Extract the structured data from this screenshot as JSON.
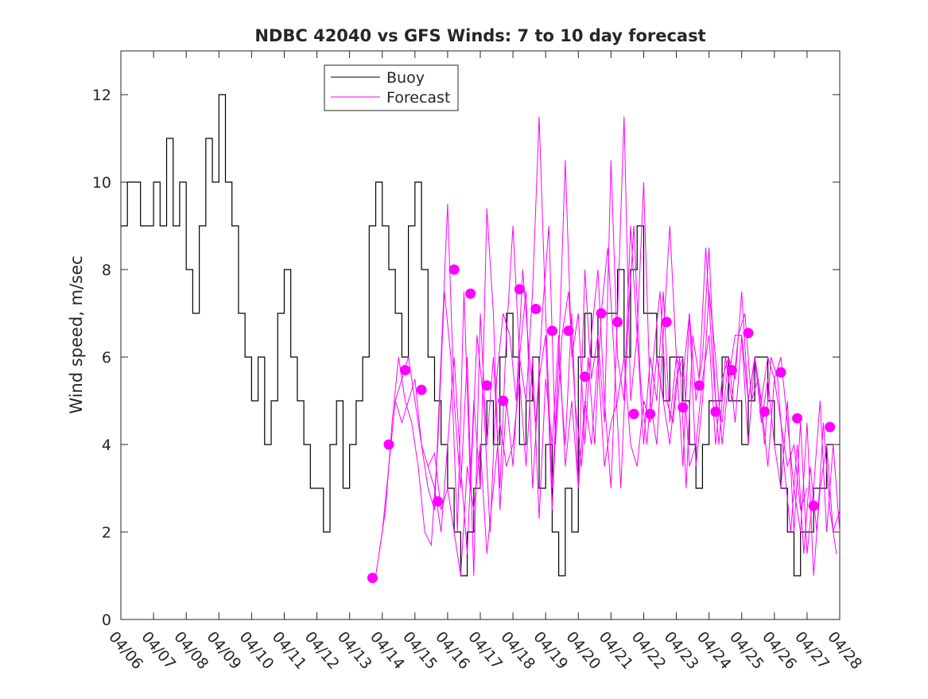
{
  "chart_data": {
    "type": "line",
    "title": "NDBC 42040 vs GFS Winds: 7 to 10 day forecast",
    "xlabel": "",
    "ylabel": "Wind speed, m/sec",
    "xlim": [
      0,
      22
    ],
    "ylim": [
      0,
      13
    ],
    "grid": false,
    "legend_position": "top-center",
    "colors": {
      "buoy": "#000000",
      "forecast": "#ff00ff",
      "axis": "#262626"
    },
    "x_tick_labels": [
      "04/06",
      "04/07",
      "04/08",
      "04/09",
      "04/10",
      "04/11",
      "04/12",
      "04/13",
      "04/14",
      "04/15",
      "04/16",
      "04/17",
      "04/18",
      "04/19",
      "04/20",
      "04/21",
      "04/22",
      "04/23",
      "04/24",
      "04/25",
      "04/26",
      "04/27",
      "04/28"
    ],
    "y_ticks": [
      0,
      2,
      4,
      6,
      8,
      10,
      12
    ],
    "series": [
      {
        "name": "Buoy",
        "x": [
          0.0,
          0.2,
          0.4,
          0.6,
          0.8,
          1.0,
          1.2,
          1.4,
          1.6,
          1.8,
          2.0,
          2.2,
          2.4,
          2.6,
          2.8,
          3.0,
          3.2,
          3.4,
          3.6,
          3.8,
          4.0,
          4.2,
          4.4,
          4.6,
          4.8,
          5.0,
          5.2,
          5.4,
          5.6,
          5.8,
          6.0,
          6.2,
          6.4,
          6.6,
          6.8,
          7.0,
          7.2,
          7.4,
          7.6,
          7.8,
          8.0,
          8.2,
          8.4,
          8.6,
          8.8,
          9.0,
          9.2,
          9.4,
          9.6,
          9.8,
          10.0,
          10.2,
          10.4,
          10.6,
          10.8,
          11.0,
          11.2,
          11.4,
          11.6,
          11.8,
          12.0,
          12.2,
          12.4,
          12.6,
          12.8,
          13.0,
          13.2,
          13.4,
          13.6,
          13.8,
          14.0,
          14.2,
          14.4,
          14.6,
          14.8,
          15.0,
          15.2,
          15.4,
          15.6,
          15.8,
          16.0,
          16.2,
          16.4,
          16.6,
          16.8,
          17.0,
          17.2,
          17.4,
          17.6,
          17.8,
          18.0,
          18.2,
          18.4,
          18.6,
          18.8,
          19.0,
          19.2,
          19.4,
          19.6,
          19.8,
          20.0,
          20.2,
          20.4,
          20.6,
          20.8,
          21.0,
          21.2,
          21.4,
          21.6,
          21.8
        ],
        "values": [
          9,
          10,
          10,
          9,
          9,
          10,
          9,
          11,
          9,
          10,
          8,
          7,
          9,
          11,
          10,
          12,
          10,
          9,
          7,
          6,
          5,
          6,
          4,
          5,
          7,
          8,
          6,
          5,
          4,
          3,
          3,
          2,
          4,
          5,
          3,
          4,
          5,
          6,
          9,
          10,
          9,
          8,
          7,
          6,
          9,
          10,
          8,
          6,
          5,
          4,
          3,
          2,
          1,
          2,
          3,
          4,
          5,
          4,
          6,
          7,
          6,
          4,
          5,
          6,
          3,
          4,
          2,
          1,
          3,
          2,
          6,
          7,
          6,
          7,
          7,
          7,
          8,
          6,
          8,
          9,
          7,
          7,
          6,
          5,
          6,
          6,
          5,
          4,
          3,
          4,
          5,
          5,
          6,
          5,
          5,
          4,
          5,
          6,
          6,
          5,
          4,
          3,
          2,
          1,
          2,
          2,
          3,
          3,
          4,
          4
        ]
      },
      {
        "name": "Forecast",
        "x": [
          7.8,
          8.0,
          8.2,
          8.4,
          8.6,
          8.8,
          9.0,
          9.2,
          9.4,
          9.6,
          9.8,
          10.0,
          10.2,
          10.4,
          10.6,
          10.8,
          11.0,
          11.2,
          11.4,
          11.6,
          11.8,
          12.0,
          12.2,
          12.4,
          12.6,
          12.8,
          13.0,
          13.2,
          13.4,
          13.6,
          13.8,
          14.0,
          14.2,
          14.4,
          14.6,
          14.8,
          15.0,
          15.2,
          15.4,
          15.6,
          15.8,
          16.0,
          16.2,
          16.4,
          16.6,
          16.8,
          17.0,
          17.2,
          17.4,
          17.6,
          17.8,
          18.0,
          18.2,
          18.4,
          18.6,
          18.8,
          19.0,
          19.2,
          19.4,
          19.6,
          19.8,
          20.0,
          20.2,
          20.4,
          20.6,
          20.8,
          21.0,
          21.2,
          21.4,
          21.6,
          21.8,
          22.0
        ],
        "values": [
          1.0,
          2.0,
          3.5,
          5.0,
          5.5,
          6.0,
          5.0,
          4.0,
          3.0,
          2.5,
          6.0,
          9.5,
          5.0,
          3.0,
          6.0,
          1.0,
          7.0,
          4.0,
          6.0,
          3.0,
          6.5,
          9.0,
          6.0,
          5.0,
          7.5,
          11.5,
          7.0,
          3.0,
          6.0,
          10.5,
          6.0,
          7.0,
          4.0,
          6.5,
          8.0,
          5.0,
          3.0,
          7.0,
          11.5,
          5.0,
          6.5,
          10.0,
          5.0,
          4.0,
          6.5,
          9.0,
          6.0,
          5.5,
          7.0,
          3.5,
          5.0,
          7.5,
          6.0,
          4.0,
          5.5,
          6.5,
          6.5,
          5.0,
          6.0,
          5.0,
          3.5,
          5.5,
          6.0,
          4.5,
          3.0,
          2.0,
          4.5,
          1.0,
          3.0,
          4.0,
          2.0,
          2.5
        ]
      },
      {
        "name": "Forecast",
        "x": [
          7.9,
          8.1,
          8.3,
          8.5,
          8.7,
          8.9,
          9.1,
          9.3,
          9.5,
          9.7,
          9.9,
          10.1,
          10.3,
          10.5,
          10.7,
          10.9,
          11.1,
          11.3,
          11.5,
          11.7,
          11.9,
          12.1,
          12.3,
          12.5,
          12.7,
          12.9,
          13.1,
          13.3,
          13.5,
          13.7,
          13.9,
          14.1,
          14.3,
          14.5,
          14.7,
          14.9,
          15.1,
          15.3,
          15.5,
          15.7,
          15.9,
          16.1,
          16.3,
          16.5,
          16.7,
          16.9,
          17.1,
          17.3,
          17.5,
          17.7,
          17.9,
          18.1,
          18.3,
          18.5,
          18.7,
          18.9,
          19.1,
          19.3,
          19.5,
          19.7,
          19.9,
          20.1,
          20.3,
          20.5,
          20.7,
          20.9,
          21.1,
          21.3,
          21.5,
          21.7,
          21.9
        ],
        "values": [
          1.5,
          2.5,
          4.5,
          6.0,
          5.0,
          4.5,
          3.5,
          2.0,
          1.7,
          4.0,
          7.5,
          6.0,
          2.0,
          7.5,
          3.0,
          6.5,
          5.0,
          2.0,
          5.5,
          7.0,
          6.5,
          5.0,
          8.0,
          6.0,
          4.5,
          7.0,
          9.0,
          4.0,
          6.5,
          7.5,
          5.0,
          3.5,
          6.0,
          4.0,
          7.0,
          8.5,
          6.0,
          3.0,
          6.5,
          9.0,
          5.5,
          4.0,
          6.0,
          7.5,
          5.0,
          4.5,
          6.0,
          3.0,
          6.5,
          5.5,
          8.5,
          6.0,
          4.0,
          6.0,
          5.0,
          6.5,
          7.0,
          5.0,
          5.5,
          4.0,
          6.0,
          5.5,
          3.5,
          2.0,
          4.0,
          1.5,
          3.5,
          2.0,
          4.5,
          2.5,
          1.5
        ]
      },
      {
        "name": "Forecast",
        "x": [
          9.4,
          9.6,
          9.8,
          10.0,
          10.2,
          10.4,
          10.6,
          10.8,
          11.0,
          11.2,
          11.4,
          11.6,
          11.8,
          12.0,
          12.2,
          12.4,
          12.6,
          12.8,
          13.0,
          13.2,
          13.4,
          13.6,
          13.8,
          14.0,
          14.2,
          14.4,
          14.6,
          14.8,
          15.0,
          15.2,
          15.4,
          15.6,
          15.8,
          16.0,
          16.2,
          16.4,
          16.6,
          16.8,
          17.0,
          17.2,
          17.4,
          17.6,
          17.8,
          18.0,
          18.2,
          18.4,
          18.6,
          18.8,
          19.0,
          19.2,
          19.4,
          19.6,
          19.8,
          20.0,
          20.2,
          20.4,
          20.6,
          20.8,
          21.0,
          21.2,
          21.4,
          21.6,
          21.8,
          22.0
        ],
        "values": [
          3.5,
          3.0,
          2.0,
          4.0,
          6.0,
          3.5,
          1.5,
          5.0,
          3.0,
          9.4,
          7.0,
          2.5,
          5.0,
          3.5,
          6.0,
          7.5,
          3.0,
          5.5,
          6.5,
          2.5,
          6.0,
          4.0,
          7.0,
          3.0,
          8.0,
          5.5,
          6.5,
          4.5,
          10.5,
          6.0,
          5.0,
          9.0,
          6.5,
          4.0,
          6.0,
          5.0,
          7.5,
          4.5,
          6.0,
          3.5,
          7.0,
          5.0,
          6.0,
          8.5,
          5.0,
          4.5,
          6.0,
          5.5,
          7.5,
          5.0,
          6.0,
          4.5,
          5.5,
          4.0,
          3.0,
          5.0,
          2.0,
          4.5,
          1.5,
          3.0,
          5.0,
          2.0,
          4.0,
          2.0
        ]
      },
      {
        "name": "Forecast",
        "x": [
          8.4,
          8.6,
          8.8,
          9.0,
          9.2,
          9.4,
          9.6,
          9.8,
          10.0,
          10.2,
          10.4,
          10.6,
          10.8,
          11.0,
          11.2,
          11.4,
          11.6,
          11.8,
          12.0,
          12.2,
          12.4,
          12.6,
          12.8,
          13.0,
          13.2,
          13.4,
          13.6,
          13.8,
          14.0,
          14.2,
          14.4,
          14.6,
          14.8,
          15.0,
          15.2,
          15.4,
          15.6,
          15.8,
          16.0,
          16.2,
          16.4,
          16.6,
          16.8,
          17.0,
          17.2,
          17.4,
          17.6,
          17.8,
          18.0,
          18.2,
          18.4,
          18.6,
          18.8,
          19.0,
          19.2,
          19.4,
          19.6,
          19.8,
          20.0,
          20.2,
          20.4,
          20.6,
          20.8,
          21.0
        ],
        "values": [
          5.0,
          4.5,
          5.0,
          5.5,
          4.0,
          3.5,
          3.8,
          2.5,
          3.0,
          2.0,
          1.0,
          3.5,
          2.5,
          4.0,
          1.5,
          3.0,
          4.5,
          3.5,
          4.0,
          5.5,
          3.5,
          6.0,
          2.3,
          5.5,
          4.0,
          6.5,
          3.5,
          5.0,
          3.0,
          5.0,
          4.0,
          6.0,
          3.5,
          4.5,
          5.0,
          6.0,
          4.0,
          3.5,
          5.0,
          4.5,
          6.0,
          5.0,
          4.0,
          5.5,
          6.0,
          3.5,
          4.0,
          5.5,
          6.5,
          4.0,
          5.5,
          6.0,
          4.5,
          6.5,
          4.0,
          6.0,
          5.0,
          6.0,
          5.5,
          4.5,
          3.5,
          4.0,
          2.5,
          3.0
        ]
      },
      {
        "name": "Forecast points",
        "x": [
          7.7,
          8.2,
          8.7,
          9.2,
          9.7,
          10.2,
          10.7,
          11.2,
          11.7,
          12.2,
          12.7,
          13.2,
          13.7,
          14.2,
          14.7,
          15.2,
          15.7,
          16.2,
          16.7,
          17.2,
          17.7,
          18.2,
          18.7,
          19.2,
          19.7,
          20.2,
          20.7,
          21.2,
          21.7
        ],
        "values": [
          0.95,
          4.0,
          5.7,
          5.25,
          2.7,
          8.0,
          7.45,
          5.35,
          5.0,
          7.55,
          7.1,
          6.6,
          6.6,
          5.55,
          7.0,
          6.8,
          4.7,
          4.7,
          6.8,
          4.85,
          5.35,
          4.75,
          5.7,
          6.55,
          4.75,
          5.65,
          4.6,
          2.6,
          4.4
        ]
      }
    ]
  }
}
